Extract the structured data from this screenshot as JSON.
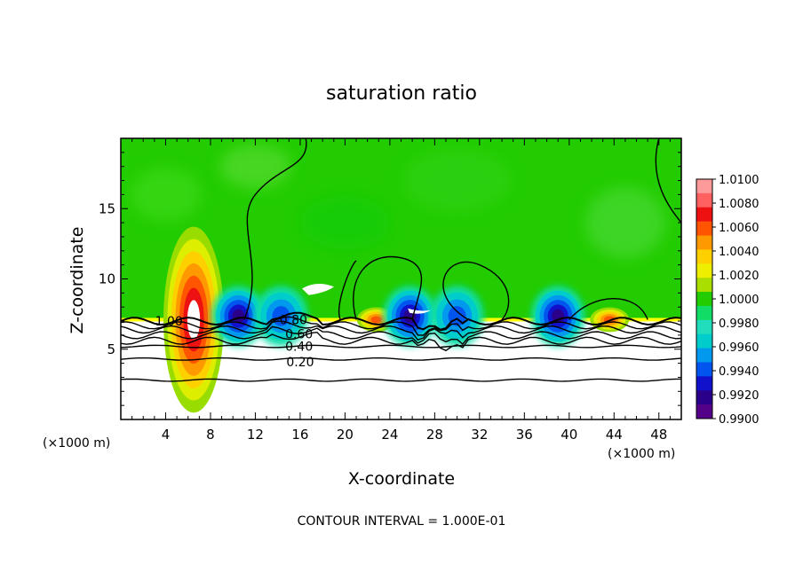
{
  "chart_data": {
    "type": "heatmap",
    "title": "saturation ratio",
    "xlabel": "X-coordinate",
    "ylabel": "Z-coordinate",
    "x_unit": "(×1000 m)",
    "footer": "CONTOUR INTERVAL = 1.000E-01",
    "xlim": [
      0,
      50
    ],
    "ylim": [
      0,
      20
    ],
    "x_ticks": [
      4,
      8,
      12,
      16,
      20,
      24,
      28,
      32,
      36,
      40,
      44,
      48
    ],
    "y_ticks": [
      5,
      10,
      15
    ],
    "colorbar": {
      "levels": [
        "1.0100",
        "1.0080",
        "1.0060",
        "1.0040",
        "1.0020",
        "1.0000",
        "0.9980",
        "0.9960",
        "0.9940",
        "0.9920",
        "0.9900"
      ],
      "colors": [
        "#ff9a9a",
        "#ff6060",
        "#ee1111",
        "#ff5500",
        "#ff9900",
        "#ffd000",
        "#eeee00",
        "#aadd00",
        "#22cc00",
        "#11dd66",
        "#22ddbb",
        "#00cccc",
        "#0099ee",
        "#0055ee",
        "#1111cc",
        "#2a008a",
        "#550088"
      ]
    },
    "contour_labels": [
      {
        "text": "1.00",
        "x": 4.3,
        "y": 7.0
      },
      {
        "text": "0.80",
        "x": 15.4,
        "y": 7.1
      },
      {
        "text": "0.60",
        "x": 15.9,
        "y": 6.1
      },
      {
        "text": "0.40",
        "x": 15.9,
        "y": 5.2
      },
      {
        "text": "0.20",
        "x": 16.0,
        "y": 4.1
      }
    ],
    "contour_levels_z": [
      7.0,
      6.7,
      6.4,
      6.0,
      5.6,
      5.2,
      4.3,
      2.8
    ],
    "features": {
      "warm_plumes": [
        {
          "x": 6.5,
          "z_top": 12.4,
          "peak": 1.01
        },
        {
          "x": 22.8,
          "z_top": 7.6,
          "peak": 1.006
        },
        {
          "x": 43.6,
          "z_top": 7.6,
          "peak": 1.008
        }
      ],
      "dry_pockets": [
        {
          "x": 10.5,
          "z": 7.4,
          "min": 0.992
        },
        {
          "x": 14.3,
          "z": 8.0,
          "min": 0.994
        },
        {
          "x": 25.8,
          "z": 7.5,
          "min": 0.992
        },
        {
          "x": 30.0,
          "z": 7.3,
          "min": 0.994
        },
        {
          "x": 39.0,
          "z": 7.6,
          "min": 0.992
        }
      ]
    }
  }
}
